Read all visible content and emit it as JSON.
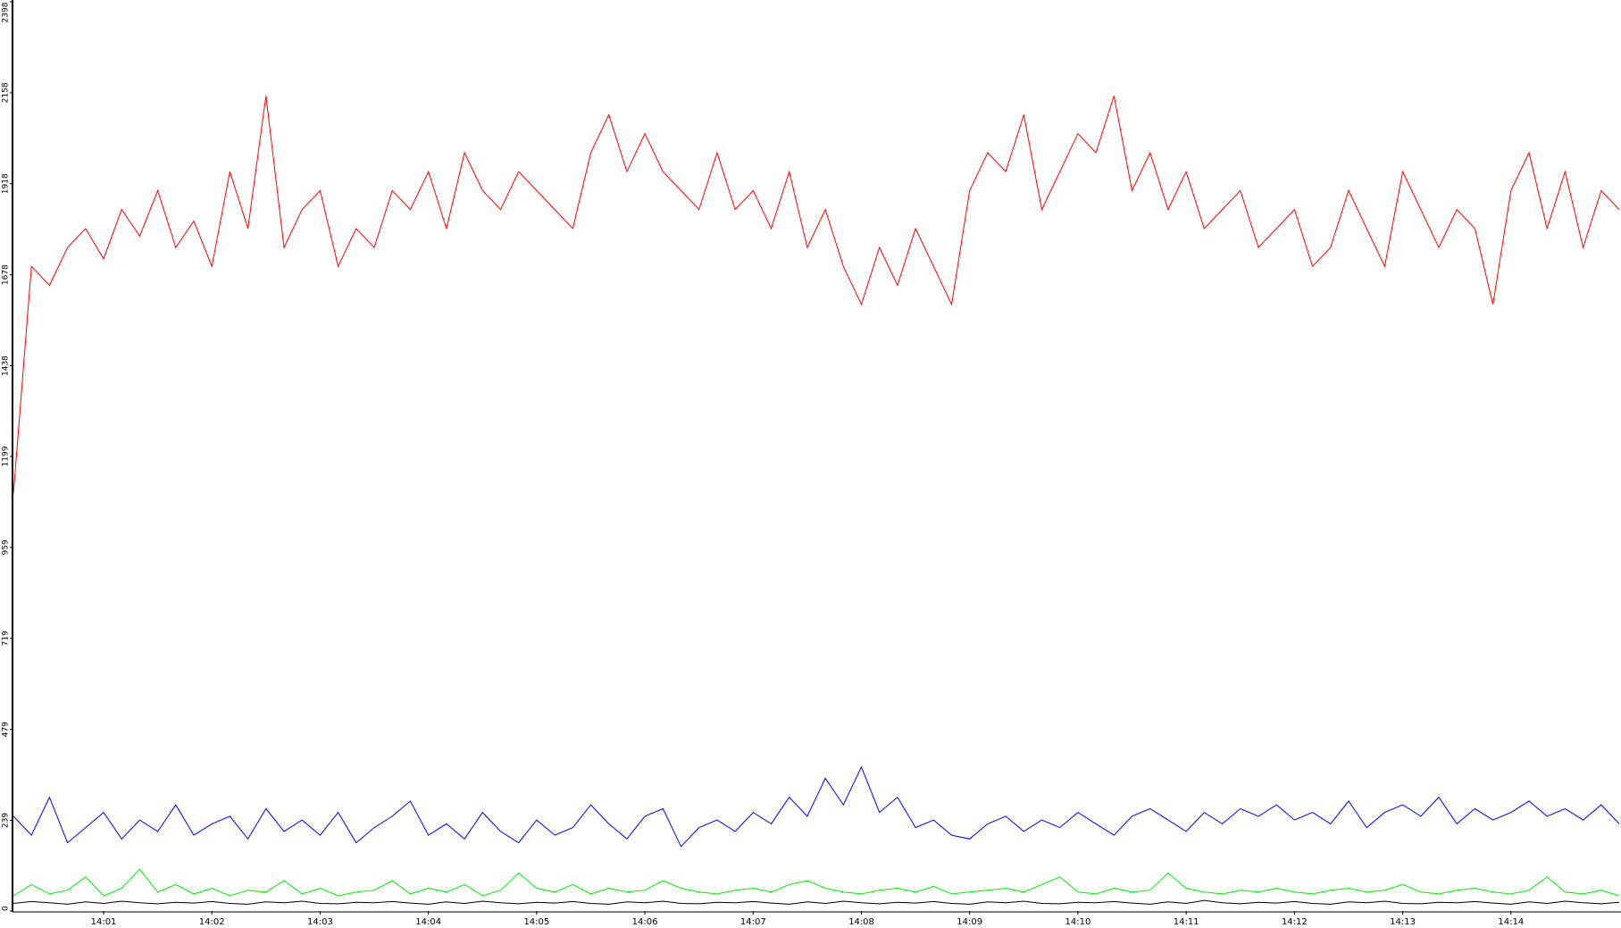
{
  "chart_data": {
    "type": "line",
    "categories": [
      null,
      null,
      null,
      null,
      null,
      "14:01",
      null,
      null,
      null,
      null,
      null,
      "14:02",
      null,
      null,
      null,
      null,
      null,
      "14:03",
      null,
      null,
      null,
      null,
      null,
      "14:04",
      null,
      null,
      null,
      null,
      null,
      "14:05",
      null,
      null,
      null,
      null,
      null,
      "14:06",
      null,
      null,
      null,
      null,
      null,
      "14:07",
      null,
      null,
      null,
      null,
      null,
      "14:08",
      null,
      null,
      null,
      null,
      null,
      "14:09",
      null,
      null,
      null,
      null,
      null,
      "14:10",
      null,
      null,
      null,
      null,
      null,
      "14:11",
      null,
      null,
      null,
      null,
      null,
      "14:12",
      null,
      null,
      null,
      null,
      null,
      "14:13",
      null,
      null,
      null,
      null,
      null,
      "14:14",
      null,
      null,
      null,
      null,
      null,
      null
    ],
    "series": [
      {
        "color": "#ff0000",
        "values": [
          1100,
          1700,
          1650,
          1750,
          1800,
          1720,
          1850,
          1780,
          1900,
          1750,
          1820,
          1700,
          1950,
          1800,
          2150,
          1750,
          1850,
          1900,
          1700,
          1800,
          1750,
          1900,
          1850,
          1950,
          1800,
          2000,
          1900,
          1850,
          1950,
          1900,
          1850,
          1800,
          2000,
          2100,
          1950,
          2050,
          1950,
          1900,
          1850,
          2000,
          1850,
          1900,
          1800,
          1950,
          1750,
          1850,
          1700,
          1600,
          1750,
          1650,
          1800,
          1700,
          1600,
          1900,
          2000,
          1950,
          2100,
          1850,
          1950,
          2050,
          2000,
          2150,
          1900,
          2000,
          1850,
          1950,
          1800,
          1850,
          1900,
          1750,
          1800,
          1850,
          1700,
          1750,
          1900,
          1800,
          1700,
          1950,
          1850,
          1750,
          1850,
          1800,
          1600,
          1900,
          2000,
          1800,
          1950,
          1750,
          1900,
          1850
        ]
      },
      {
        "color": "#0000ff",
        "values": [
          250,
          200,
          300,
          180,
          220,
          260,
          190,
          240,
          210,
          280,
          200,
          230,
          250,
          190,
          270,
          210,
          240,
          200,
          260,
          180,
          220,
          250,
          290,
          200,
          230,
          190,
          260,
          210,
          180,
          240,
          200,
          220,
          280,
          230,
          190,
          250,
          270,
          170,
          220,
          240,
          210,
          260,
          230,
          300,
          250,
          350,
          280,
          380,
          260,
          300,
          220,
          240,
          200,
          190,
          230,
          250,
          210,
          240,
          220,
          260,
          230,
          200,
          250,
          270,
          240,
          210,
          260,
          230,
          270,
          250,
          280,
          240,
          260,
          230,
          290,
          220,
          260,
          280,
          250,
          300,
          230,
          270,
          240,
          260,
          290,
          250,
          270,
          240,
          280,
          230
        ]
      },
      {
        "color": "#00ee00",
        "values": [
          40,
          70,
          45,
          55,
          90,
          40,
          60,
          110,
          50,
          70,
          45,
          60,
          40,
          55,
          50,
          80,
          45,
          60,
          40,
          50,
          55,
          80,
          45,
          60,
          50,
          70,
          40,
          55,
          100,
          60,
          50,
          70,
          45,
          60,
          50,
          55,
          80,
          60,
          50,
          45,
          55,
          60,
          50,
          70,
          80,
          60,
          50,
          45,
          55,
          60,
          50,
          65,
          45,
          50,
          55,
          60,
          50,
          70,
          90,
          50,
          45,
          60,
          50,
          55,
          100,
          60,
          50,
          45,
          55,
          50,
          60,
          50,
          45,
          55,
          60,
          50,
          55,
          70,
          50,
          45,
          55,
          60,
          50,
          45,
          55,
          90,
          50,
          45,
          55,
          40
        ]
      },
      {
        "color": "#000000",
        "values": [
          20,
          25,
          22,
          18,
          24,
          20,
          26,
          22,
          19,
          23,
          21,
          25,
          20,
          18,
          24,
          22,
          26,
          20,
          19,
          23,
          22,
          25,
          21,
          18,
          24,
          20,
          26,
          22,
          19,
          23,
          21,
          25,
          20,
          18,
          24,
          22,
          26,
          20,
          19,
          23,
          22,
          25,
          21,
          18,
          24,
          20,
          26,
          22,
          19,
          23,
          21,
          25,
          20,
          18,
          24,
          22,
          26,
          20,
          19,
          23,
          22,
          25,
          21,
          18,
          24,
          20,
          28,
          22,
          19,
          23,
          21,
          25,
          20,
          18,
          24,
          22,
          26,
          20,
          19,
          23,
          22,
          25,
          21,
          18,
          24,
          20,
          26,
          22,
          19,
          23
        ]
      }
    ],
    "ylim": [
      0,
      2398
    ],
    "yticks": [
      0,
      239,
      479,
      719,
      959,
      1199,
      1438,
      1678,
      1918,
      2158,
      2398
    ]
  }
}
